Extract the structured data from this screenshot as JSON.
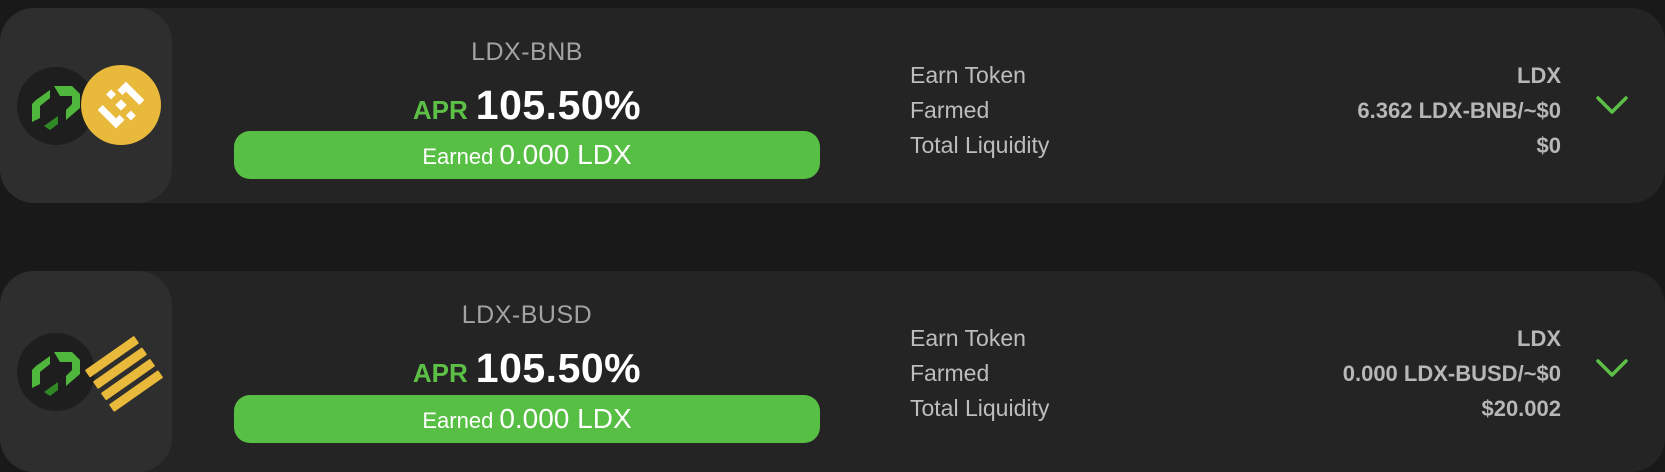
{
  "colors": {
    "accent_green": "#5cc046",
    "card_bg": "#242424",
    "logo_bg": "#2e2e2e",
    "bnb_yellow": "#f0b90b",
    "busd_yellow": "#f0b90b"
  },
  "farms": [
    {
      "pair": "LDX-BNB",
      "apr_label": "APR",
      "apr_value": "105.50%",
      "earned_label": "Earned",
      "earned_value": "0.000 LDX",
      "labels": {
        "earn_token": "Earn Token",
        "farmed": "Farmed",
        "total_liquidity": "Total Liquidity"
      },
      "values": {
        "earn_token": "LDX",
        "farmed": "6.362 LDX-BNB/~$0",
        "total_liquidity": "$0"
      },
      "icons": [
        "ldx-token-icon",
        "bnb-token-icon",
        "chevron-down-icon"
      ]
    },
    {
      "pair": "LDX-BUSD",
      "apr_label": "APR",
      "apr_value": "105.50%",
      "earned_label": "Earned",
      "earned_value": "0.000 LDX",
      "labels": {
        "earn_token": "Earn Token",
        "farmed": "Farmed",
        "total_liquidity": "Total Liquidity"
      },
      "values": {
        "earn_token": "LDX",
        "farmed": "0.000 LDX-BUSD/~$0",
        "total_liquidity": "$20.002"
      },
      "icons": [
        "ldx-token-icon",
        "busd-token-icon",
        "chevron-down-icon"
      ]
    }
  ]
}
